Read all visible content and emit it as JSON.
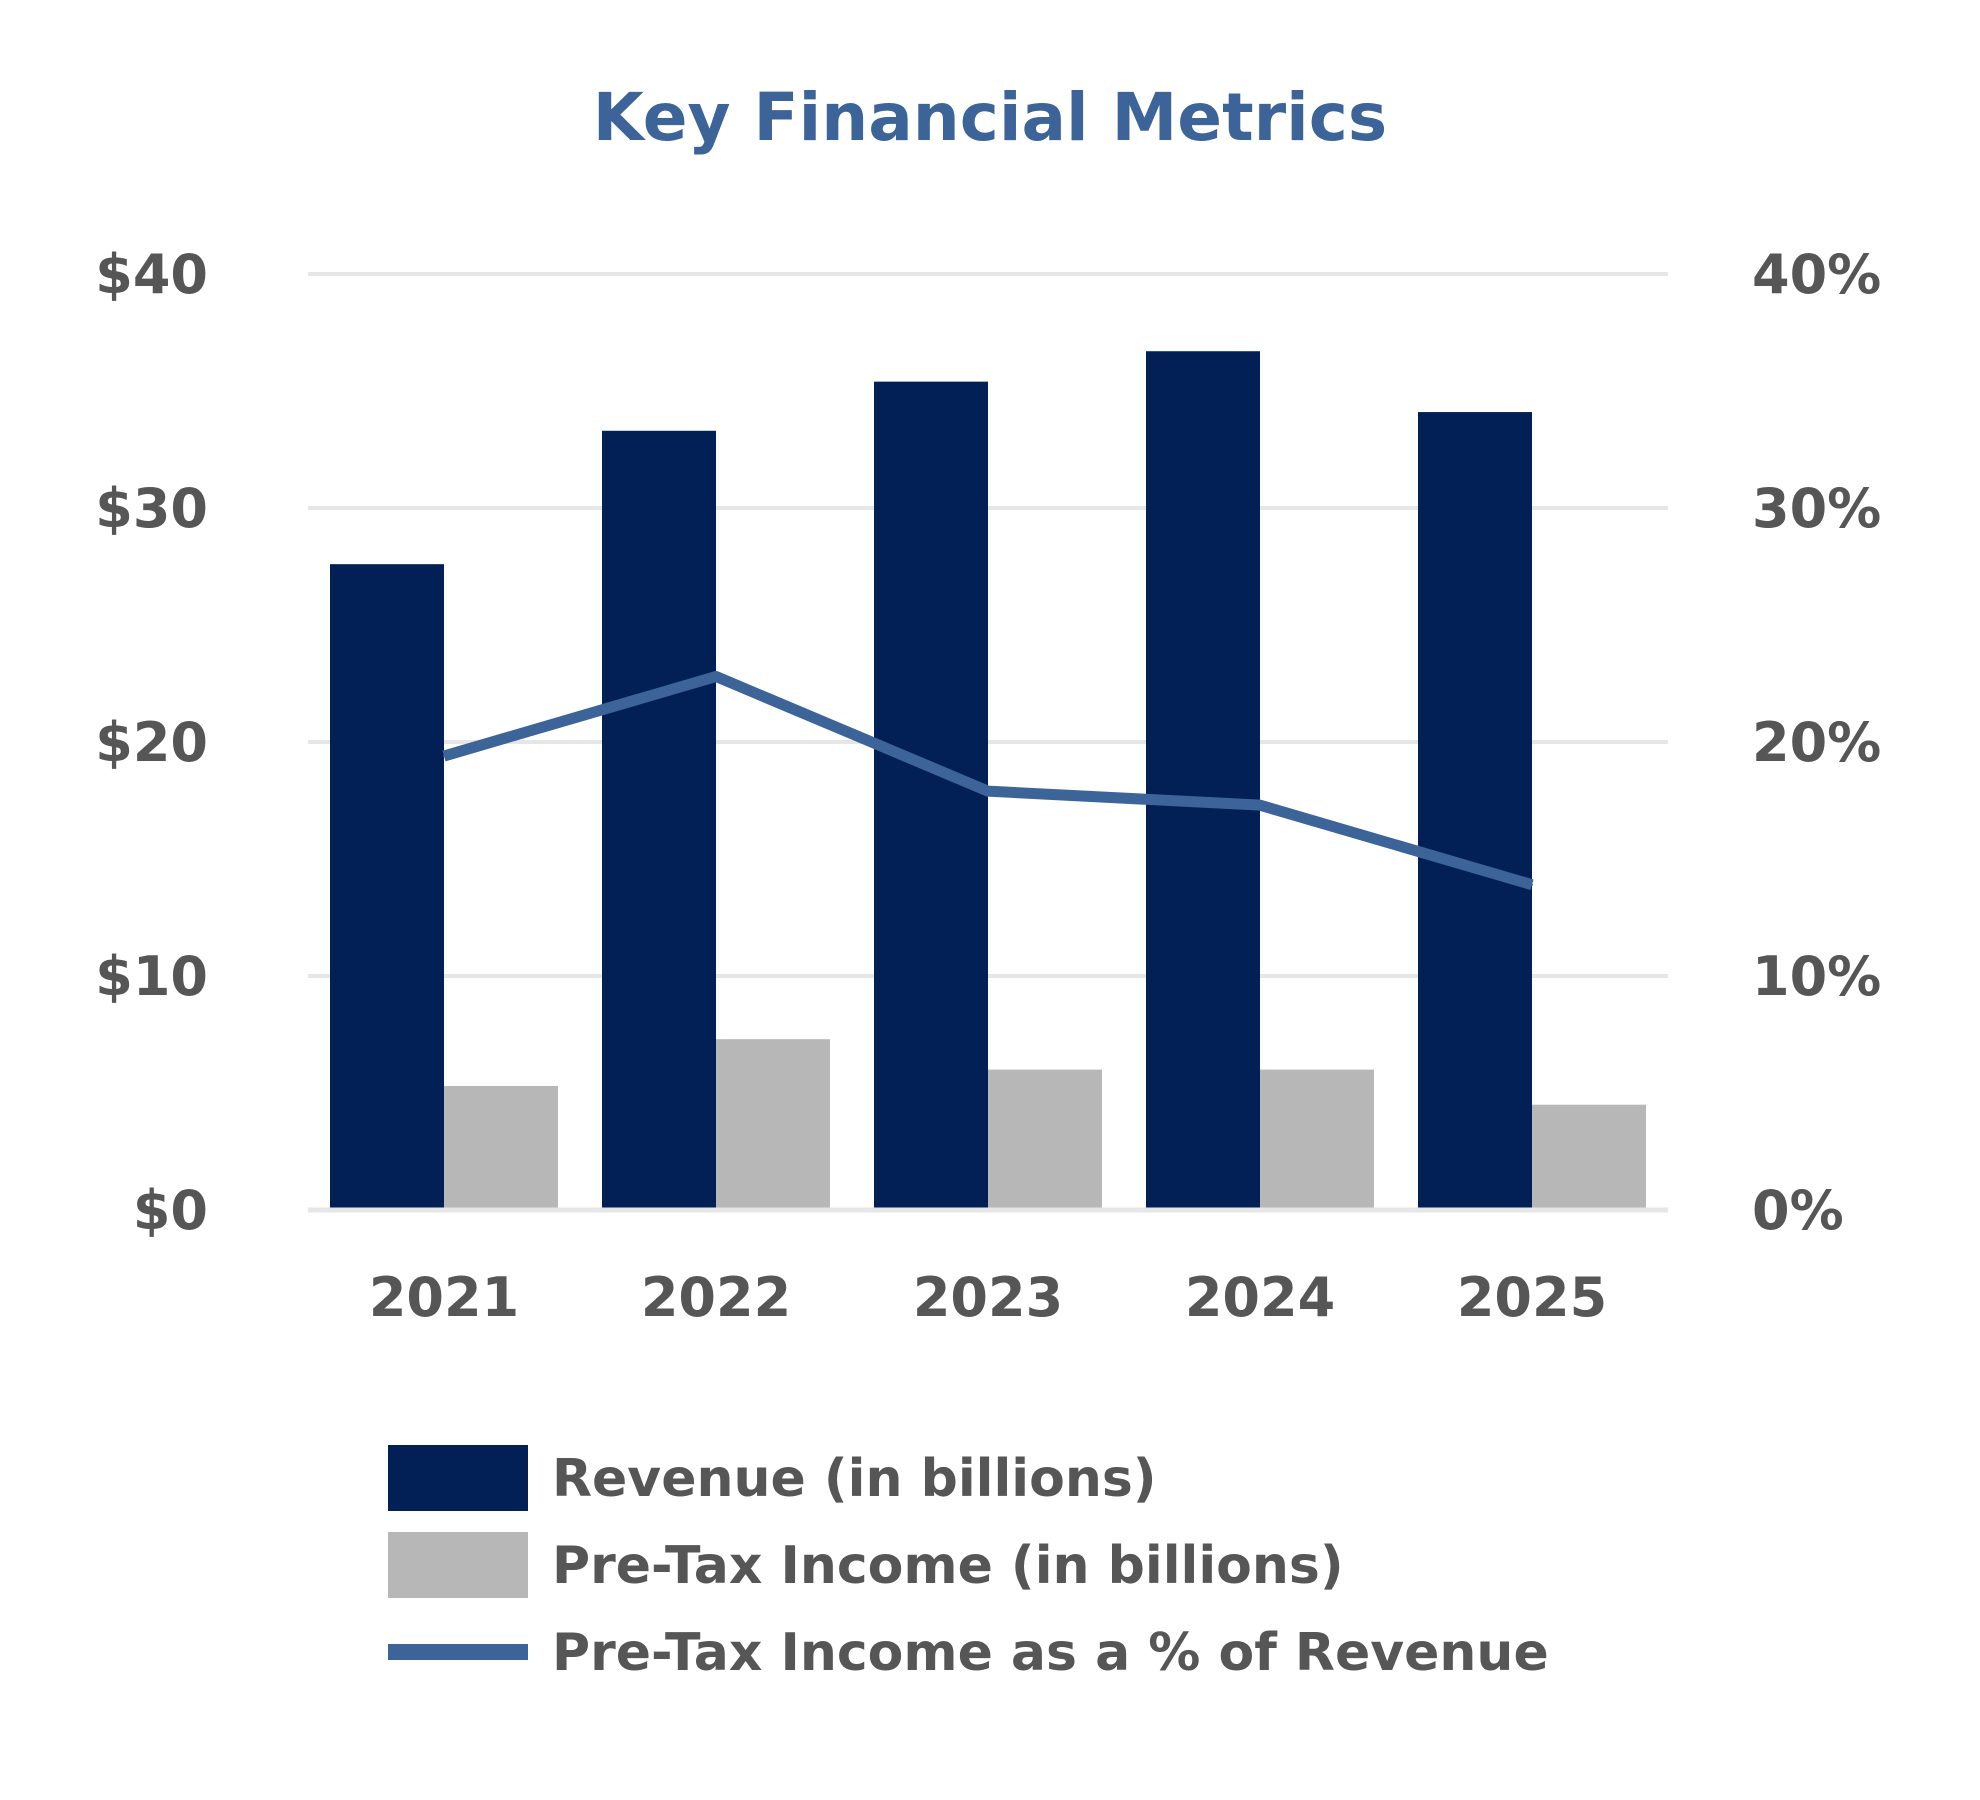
{
  "chart_data": {
    "type": "bar",
    "title": "Key Financial Metrics",
    "categories": [
      "2021",
      "2022",
      "2023",
      "2024",
      "2025"
    ],
    "series": [
      {
        "name": "Revenue (in billions)",
        "kind": "bar",
        "axis": "left",
        "color": "#022056",
        "values": [
          27.6,
          33.3,
          35.4,
          36.7,
          34.1
        ]
      },
      {
        "name": "Pre-Tax Income (in billions)",
        "kind": "bar",
        "axis": "left",
        "color": "#b7b7b7",
        "values": [
          5.3,
          7.3,
          6.0,
          6.0,
          4.5
        ]
      },
      {
        "name": "Pre-Tax Income as a % of Revenue",
        "kind": "line",
        "axis": "right",
        "color": "#3c6499",
        "values": [
          19.4,
          22.8,
          17.9,
          17.3,
          13.9
        ]
      }
    ],
    "y_left": {
      "min": 0,
      "max": 40,
      "ticks": [
        0,
        10,
        20,
        30,
        40
      ],
      "tick_labels": [
        "$0",
        "$10",
        "$20",
        "$30",
        "$40"
      ]
    },
    "y_right": {
      "min": 0,
      "max": 40,
      "ticks": [
        0,
        10,
        20,
        30,
        40
      ],
      "tick_labels": [
        "0%",
        "10%",
        "20%",
        "30%",
        "40%"
      ]
    },
    "grid": true,
    "legend_position": "bottom"
  }
}
